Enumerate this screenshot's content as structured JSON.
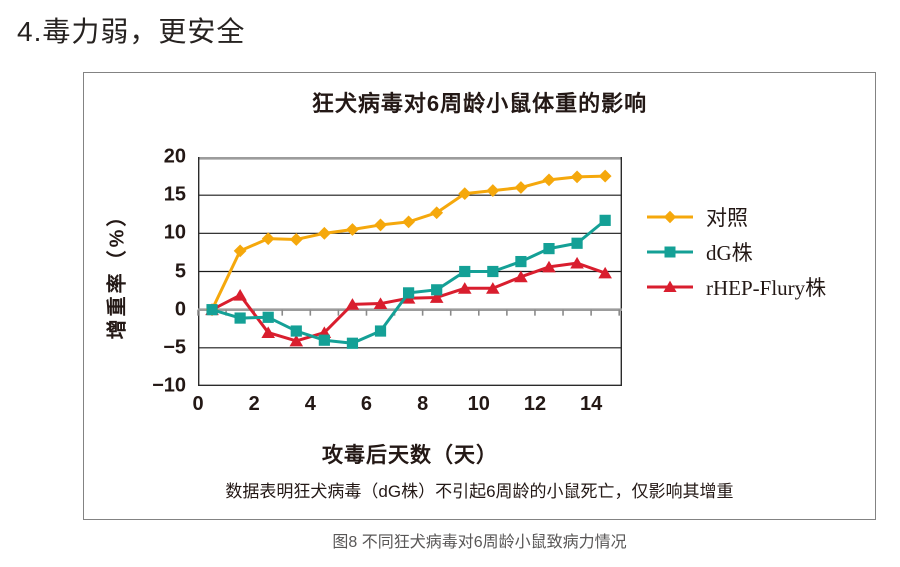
{
  "page": {
    "heading": "4.毒力弱，更安全",
    "caption": "图8 不同狂犬病毒对6周龄小鼠致病力情况"
  },
  "chart_data": {
    "type": "line",
    "title": "狂犬病毒对6周龄小鼠体重的影响",
    "xlabel": "攻毒后天数（天）",
    "ylabel": "增重率（%）",
    "note": "数据表明狂犬病毒（dG株）不引起6周龄的小鼠死亡，仅影响其增重",
    "x": [
      0.5,
      1.5,
      2.5,
      3.5,
      4.5,
      5.5,
      6.5,
      7.5,
      8.5,
      9.5,
      10.5,
      11.5,
      12.5,
      13.5,
      14.5
    ],
    "xlim": [
      0,
      15.1
    ],
    "ylim": [
      -10,
      20
    ],
    "xticks": [
      0,
      2,
      4,
      6,
      8,
      10,
      12,
      14
    ],
    "yticks": [
      20,
      15,
      10,
      5,
      0,
      -5,
      -10
    ],
    "grid": true,
    "legend_position": "right",
    "series": [
      {
        "id": "control",
        "name": "对照",
        "marker": "diamond",
        "color": "#F5A80C",
        "values": [
          0,
          7.7,
          9.3,
          9.2,
          10,
          10.5,
          11.1,
          11.5,
          12.7,
          15.2,
          15.6,
          16,
          17,
          17.4,
          17.5
        ]
      },
      {
        "id": "dg-strain",
        "name": "dG株",
        "marker": "square",
        "color": "#14A096",
        "values": [
          0,
          -1.1,
          -1,
          -2.8,
          -4,
          -4.4,
          -2.8,
          2.2,
          2.6,
          5,
          5,
          6.3,
          8,
          8.7,
          11.7
        ]
      },
      {
        "id": "rhep-flury-strain",
        "name": "rHEP-Flury株",
        "marker": "triangle",
        "color": "#D91E2E",
        "values": [
          0,
          1.9,
          -3,
          -4.1,
          -3,
          0.7,
          0.8,
          1.5,
          1.6,
          2.8,
          2.8,
          4.3,
          5.6,
          6.1,
          4.8
        ]
      }
    ]
  }
}
